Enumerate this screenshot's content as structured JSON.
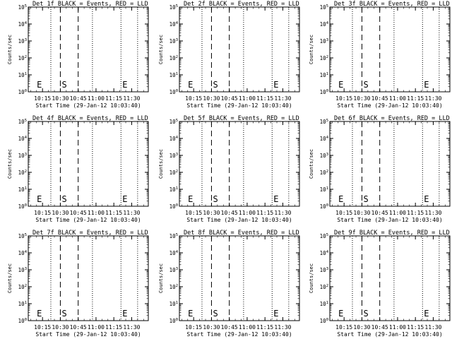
{
  "chart_data": [
    {
      "type": "line",
      "title": "Det 1f BLACK = Events, RED = LLD",
      "xlabel": "Start Time (29-Jan-12 10:03:40)",
      "ylabel": "Counts/sec"
    },
    {
      "type": "line",
      "title": "Det 2f BLACK = Events, RED = LLD",
      "xlabel": "Start Time (29-Jan-12 10:03:40)",
      "ylabel": "Counts/sec"
    },
    {
      "type": "line",
      "title": "Det 3f BLACK = Events, RED = LLD",
      "xlabel": "Start Time (29-Jan-12 10:03:40)",
      "ylabel": "Counts/sec"
    },
    {
      "type": "line",
      "title": "Det 4f BLACK = Events, RED = LLD",
      "xlabel": "Start Time (29-Jan-12 10:03:40)",
      "ylabel": "Counts/sec"
    },
    {
      "type": "line",
      "title": "Det 5f BLACK = Events, RED = LLD",
      "xlabel": "Start Time (29-Jan-12 10:03:40)",
      "ylabel": "Counts/sec"
    },
    {
      "type": "line",
      "title": "Det 6f BLACK = Events, RED = LLD",
      "xlabel": "Start Time (29-Jan-12 10:03:40)",
      "ylabel": "Counts/sec"
    },
    {
      "type": "line",
      "title": "Det 7f BLACK = Events, RED = LLD",
      "xlabel": "Start Time (29-Jan-12 10:03:40)",
      "ylabel": "Counts/sec"
    },
    {
      "type": "line",
      "title": "Det 8f BLACK = Events, RED = LLD",
      "xlabel": "Start Time (29-Jan-12 10:03:40)",
      "ylabel": "Counts/sec"
    },
    {
      "type": "line",
      "title": "Det 9f BLACK = Events, RED = LLD",
      "xlabel": "Start Time (29-Jan-12 10:03:40)",
      "ylabel": "Counts/sec"
    }
  ],
  "shared": {
    "x_ticks": [
      "10:15",
      "10:30",
      "10:45",
      "11:00",
      "11:15",
      "11:30"
    ],
    "y_ticks": [
      {
        "base": "10",
        "exp": "0"
      },
      {
        "base": "10",
        "exp": "1"
      },
      {
        "base": "10",
        "exp": "2"
      },
      {
        "base": "10",
        "exp": "3"
      },
      {
        "base": "10",
        "exp": "4"
      },
      {
        "base": "10",
        "exp": "5"
      }
    ],
    "ylim": [
      1,
      100000
    ],
    "x_scale": "time",
    "y_scale": "log",
    "dotted_lines": [
      "10:22",
      "10:57",
      "11:21",
      "11:35"
    ],
    "dashed_lines": [
      "10:30",
      "10:45"
    ],
    "markers": [
      {
        "label": "E",
        "at": "10:09"
      },
      {
        "label": "S",
        "at": "10:30"
      },
      {
        "label": "E",
        "at": "11:21"
      }
    ]
  }
}
